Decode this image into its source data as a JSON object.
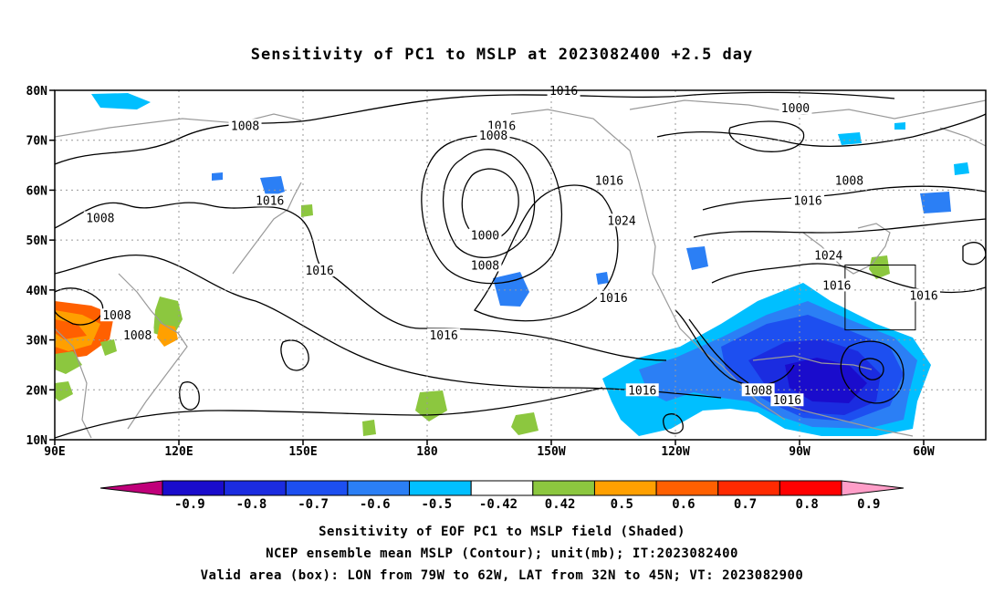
{
  "title": "Sensitivity of PC1 to MSLP at 2023082400 +2.5 day",
  "map": {
    "lat_labels": [
      "80N",
      "70N",
      "60N",
      "50N",
      "40N",
      "30N",
      "20N",
      "10N"
    ],
    "lat_values": [
      80,
      70,
      60,
      50,
      40,
      30,
      20,
      10
    ],
    "lon_labels": [
      "90E",
      "120E",
      "150E",
      "180",
      "150W",
      "120W",
      "90W",
      "60W"
    ],
    "lon_values": [
      90,
      120,
      150,
      180,
      210,
      240,
      270,
      300
    ],
    "extent": {
      "lon_min": 90,
      "lon_max": 315,
      "lat_min": 10,
      "lat_max": 80
    },
    "contour_labels": [
      {
        "text": "1016",
        "lon": 213,
        "lat": 80
      },
      {
        "text": "1000",
        "lon": 269,
        "lat": 76.5
      },
      {
        "text": "1008",
        "lon": 136,
        "lat": 73
      },
      {
        "text": "1016",
        "lon": 198,
        "lat": 73
      },
      {
        "text": "1008",
        "lon": 196,
        "lat": 71
      },
      {
        "text": "1016",
        "lon": 224,
        "lat": 62
      },
      {
        "text": "1008",
        "lon": 282,
        "lat": 62
      },
      {
        "text": "1016",
        "lon": 142,
        "lat": 58
      },
      {
        "text": "1016",
        "lon": 272,
        "lat": 58
      },
      {
        "text": "1008",
        "lon": 101,
        "lat": 54.5
      },
      {
        "text": "1024",
        "lon": 227,
        "lat": 54
      },
      {
        "text": "1000",
        "lon": 194,
        "lat": 51
      },
      {
        "text": "1024",
        "lon": 277,
        "lat": 47
      },
      {
        "text": "1008",
        "lon": 194,
        "lat": 45
      },
      {
        "text": "1016",
        "lon": 154,
        "lat": 44
      },
      {
        "text": "1016",
        "lon": 279,
        "lat": 41
      },
      {
        "text": "1016",
        "lon": 300,
        "lat": 39
      },
      {
        "text": "1016",
        "lon": 225,
        "lat": 38.5
      },
      {
        "text": "1008",
        "lon": 105,
        "lat": 35
      },
      {
        "text": "1008",
        "lon": 110,
        "lat": 31
      },
      {
        "text": "1016",
        "lon": 184,
        "lat": 31
      },
      {
        "text": "1016",
        "lon": 232,
        "lat": 20
      },
      {
        "text": "1008",
        "lon": 260,
        "lat": 20
      },
      {
        "text": "1016",
        "lon": 267,
        "lat": 18
      }
    ],
    "valid_box": {
      "lon_min": 281,
      "lon_max": 298,
      "lat_min": 32,
      "lat_max": 45
    }
  },
  "colorbar": {
    "labels": [
      "-0.9",
      "-0.8",
      "-0.7",
      "-0.6",
      "-0.5",
      "-0.42",
      "0.42",
      "0.5",
      "0.6",
      "0.7",
      "0.8",
      "0.9"
    ],
    "colors": [
      "#1a0ccc",
      "#1b2ce0",
      "#1d4ff0",
      "#2b7ff5",
      "#00bfff",
      "#ffffff",
      "#8cc73f",
      "#ffa000",
      "#ff6000",
      "#ff2a00",
      "#ff0000"
    ],
    "low_end_color": "#c0007a",
    "high_end_color": "#ff9ec8"
  },
  "captions": [
    "Sensitivity of EOF PC1 to MSLP field (Shaded)",
    "NCEP ensemble mean MSLP (Contour); unit(mb); IT:2023082400",
    "Valid area (box): LON from 79W to 62W, LAT from 32N to 45N; VT: 2023082900"
  ]
}
